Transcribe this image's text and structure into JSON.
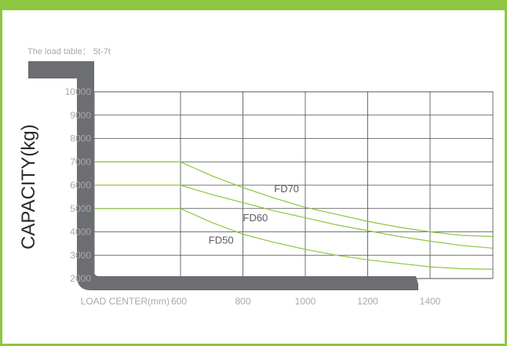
{
  "subtitle": "The load table： 5t-7t",
  "colors": {
    "accent": "#8dc63f",
    "grid": "#4a4a4a",
    "fork": "#6d6e71",
    "curve": "#8dc63f",
    "text": "#a9a9a9"
  },
  "chart_data": {
    "type": "line",
    "title": "",
    "xlabel": "LOAD CENTER(mm)",
    "ylabel": "CAPACITY(kg)",
    "xlim": [
      470,
      1600
    ],
    "ylim": [
      2000,
      10000
    ],
    "x_ticks": [
      600,
      800,
      1000,
      1200,
      1400
    ],
    "x_tick_labels": [
      "600",
      "800",
      "1000",
      "1200",
      "1400"
    ],
    "y_ticks": [
      2000,
      3000,
      4000,
      5000,
      6000,
      7000,
      8000,
      9000,
      10000
    ],
    "y_tick_labels": [
      "2000",
      "3000",
      "4000",
      "5000",
      "6000",
      "7000",
      "8000",
      "9000",
      "10000"
    ],
    "grid": true,
    "series": [
      {
        "name": "FD70",
        "x": [
          470,
          600,
          700,
          800,
          900,
          1000,
          1100,
          1200,
          1300,
          1400,
          1500,
          1600
        ],
        "values": [
          7000,
          7000,
          6400,
          5900,
          5450,
          5050,
          4750,
          4450,
          4200,
          4000,
          3850,
          3800
        ]
      },
      {
        "name": "FD60",
        "x": [
          470,
          600,
          700,
          800,
          900,
          1000,
          1100,
          1200,
          1300,
          1400,
          1500,
          1600
        ],
        "values": [
          6000,
          6000,
          5600,
          5250,
          4900,
          4600,
          4300,
          4050,
          3800,
          3600,
          3420,
          3300
        ]
      },
      {
        "name": "FD50",
        "x": [
          470,
          600,
          700,
          800,
          900,
          1000,
          1100,
          1200,
          1300,
          1400,
          1500,
          1600
        ],
        "values": [
          5000,
          5000,
          4400,
          3900,
          3550,
          3250,
          3000,
          2800,
          2650,
          2500,
          2420,
          2400
        ]
      }
    ],
    "annotations": [
      {
        "text": "FD70",
        "x": 900,
        "y": 5700
      },
      {
        "text": "FD60",
        "x": 800,
        "y": 4450
      },
      {
        "text": "FD50",
        "x": 690,
        "y": 3500
      }
    ]
  }
}
